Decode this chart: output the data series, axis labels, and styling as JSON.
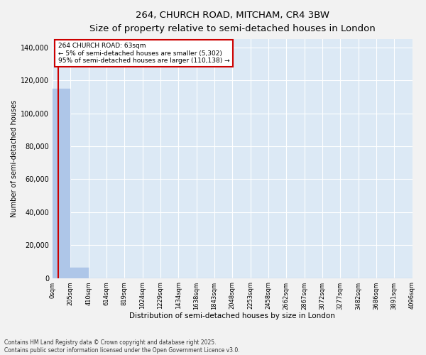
{
  "title1": "264, CHURCH ROAD, MITCHAM, CR4 3BW",
  "title2": "Size of property relative to semi-detached houses in London",
  "xlabel": "Distribution of semi-detached houses by size in London",
  "ylabel": "Number of semi-detached houses",
  "fig_facecolor": "#f2f2f2",
  "plot_facecolor": "#dce9f5",
  "bar_color": "#aec6e8",
  "bar_edge_color": "#aec6e8",
  "grid_color": "#ffffff",
  "property_line_color": "#cc0000",
  "annotation_box_color": "#cc0000",
  "footer": "Contains HM Land Registry data © Crown copyright and database right 2025.\nContains public sector information licensed under the Open Government Licence v3.0.",
  "property_size": 63,
  "property_label": "264 CHURCH ROAD: 63sqm",
  "annotation_line1": "← 5% of semi-detached houses are smaller (5,302)",
  "annotation_line2": "95% of semi-detached houses are larger (110,138) →",
  "bin_edges": [
    0,
    205,
    410,
    614,
    819,
    1024,
    1229,
    1434,
    1638,
    1843,
    2048,
    2253,
    2458,
    2662,
    2867,
    3072,
    3277,
    3482,
    3686,
    3891,
    4096
  ],
  "bar_heights": [
    115000,
    6500,
    0,
    0,
    0,
    0,
    0,
    0,
    0,
    0,
    0,
    0,
    0,
    0,
    0,
    0,
    0,
    0,
    0,
    0
  ],
  "ylim": [
    0,
    145000
  ],
  "yticks": [
    0,
    20000,
    40000,
    60000,
    80000,
    100000,
    120000,
    140000
  ]
}
